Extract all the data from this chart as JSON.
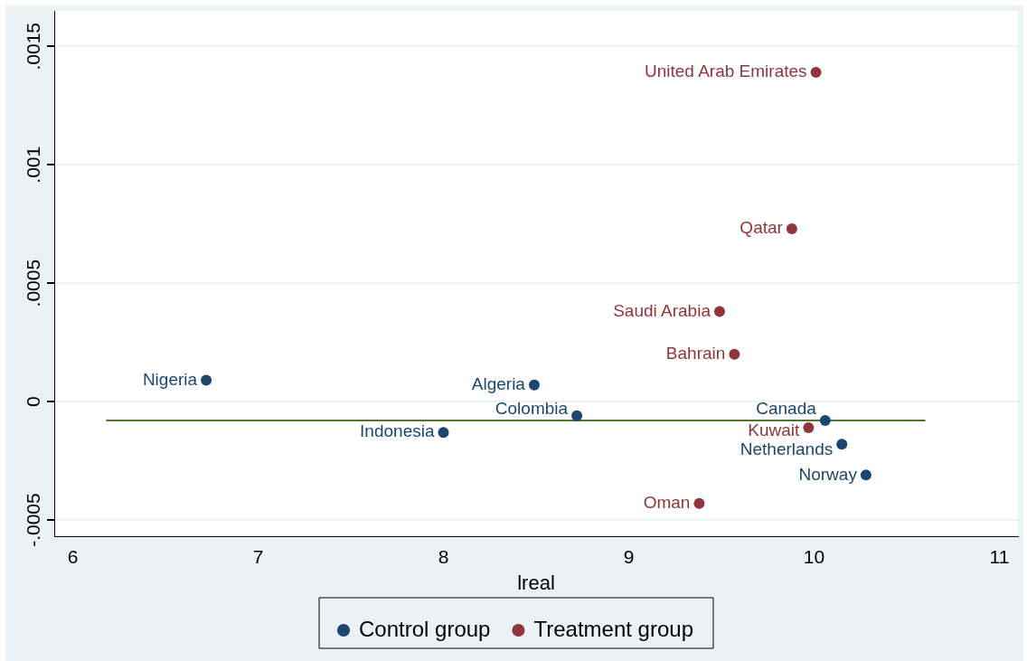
{
  "chart_data": {
    "type": "scatter",
    "xlabel": "lreal",
    "xlim": [
      5.9,
      11.1
    ],
    "xticks": [
      6,
      7,
      8,
      9,
      10,
      11
    ],
    "ylim": [
      -0.00057,
      0.00165
    ],
    "yticks": [
      {
        "value": -0.0005,
        "label": "-.0005"
      },
      {
        "value": 0,
        "label": "0"
      },
      {
        "value": 0.0005,
        "label": ".0005"
      },
      {
        "value": 0.001,
        "label": ".001"
      },
      {
        "value": 0.0015,
        "label": ".0015"
      }
    ],
    "grid": "y",
    "legend": "bottom",
    "marker": "circle",
    "series": [
      {
        "name": "Control group",
        "color": "#1a476f",
        "x": [
          6.72,
          8.0,
          8.49,
          8.72,
          10.06,
          10.15,
          10.28
        ],
        "values": [
          9e-05,
          -0.00013,
          7e-05,
          -6e-05,
          -8e-05,
          -0.00018,
          -0.00031
        ]
      },
      {
        "name": "Treatment group",
        "color": "#90353b",
        "x": [
          10.01,
          9.88,
          9.49,
          9.57,
          9.97,
          9.38
        ],
        "values": [
          0.00139,
          0.00073,
          0.00038,
          0.0002,
          -0.00011,
          -0.00043
        ]
      },
      {
        "type": "line",
        "color": "#55752f",
        "marker": "none",
        "x": [
          6.18,
          10.6
        ],
        "values": [
          -8e-05,
          -8e-05
        ]
      }
    ],
    "annotations": [
      {
        "text": "Nigeria",
        "x": 6.72,
        "y": 9e-05
      },
      {
        "text": "Indonesia",
        "x": 8.0,
        "y": -0.00013
      },
      {
        "text": "Algeria",
        "x": 8.49,
        "y": 7e-05
      },
      {
        "text": "Colombia",
        "x": 8.72,
        "y": -6e-05
      },
      {
        "text": "Canada",
        "x": 10.06,
        "y": -8e-05
      },
      {
        "text": "Netherlands",
        "x": 10.15,
        "y": -0.00018
      },
      {
        "text": "Norway",
        "x": 10.28,
        "y": -0.00031
      },
      {
        "text": "United Arab Emirates",
        "x": 10.01,
        "y": 0.00139
      },
      {
        "text": "Qatar",
        "x": 9.88,
        "y": 0.00073
      },
      {
        "text": "Saudi Arabia",
        "x": 9.49,
        "y": 0.00038
      },
      {
        "text": "Bahrain",
        "x": 9.57,
        "y": 0.0002
      },
      {
        "text": "Kuwait",
        "x": 9.97,
        "y": -0.00011
      },
      {
        "text": "Oman",
        "x": 9.38,
        "y": -0.00043
      }
    ]
  }
}
